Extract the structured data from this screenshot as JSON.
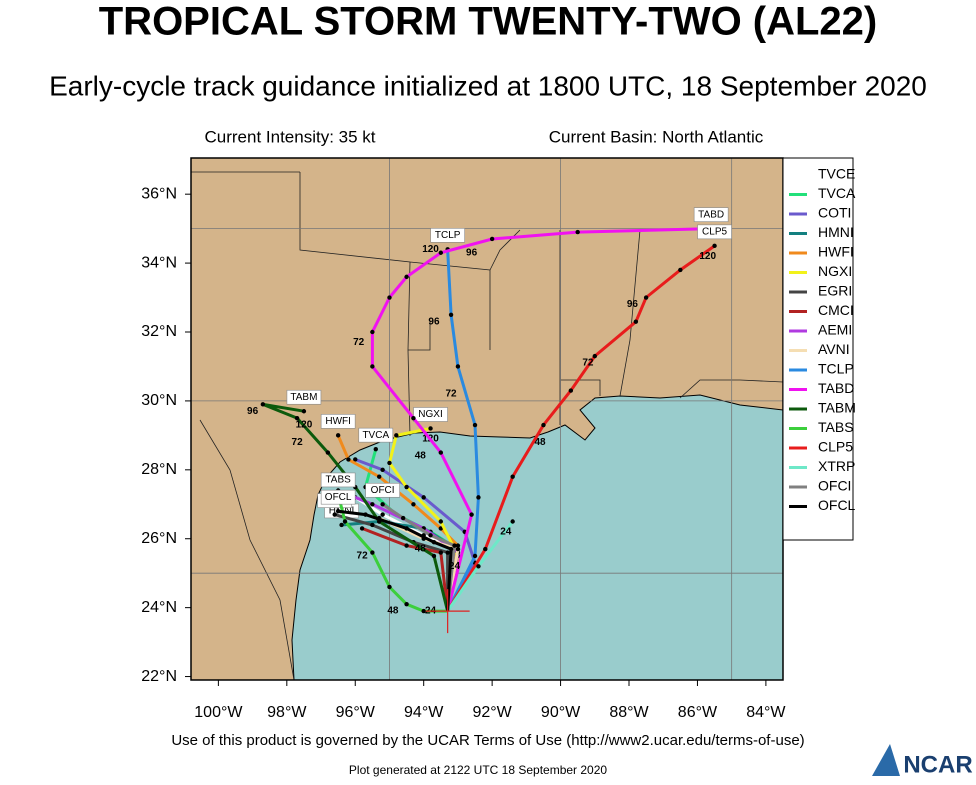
{
  "header": {
    "title": "TROPICAL STORM TWENTY-TWO (AL22)",
    "subtitle": "Early-cycle track guidance initialized at 1800 UTC, 18 September 2020",
    "intensity": "Current Intensity: 35 kt",
    "basin": "Current Basin: North Atlantic"
  },
  "footer": {
    "terms": "Use of this product is governed by the UCAR Terms of Use (http://www2.ucar.edu/terms-of-use)",
    "generated": "Plot generated at 2122 UTC   18 September 2020",
    "logo": "NCAR"
  },
  "map": {
    "lon_range": [
      -100.8,
      -83.5
    ],
    "lat_range": [
      21.9,
      37.05
    ],
    "lon_ticks": [
      {
        "value": -100,
        "label": "100°W"
      },
      {
        "value": -98,
        "label": "98°W"
      },
      {
        "value": -96,
        "label": "96°W"
      },
      {
        "value": -94,
        "label": "94°W"
      },
      {
        "value": -92,
        "label": "92°W"
      },
      {
        "value": -90,
        "label": "90°W"
      },
      {
        "value": -88,
        "label": "88°W"
      },
      {
        "value": -86,
        "label": "86°W"
      },
      {
        "value": -84,
        "label": "84°W"
      }
    ],
    "lat_ticks": [
      {
        "value": 22,
        "label": "22°N"
      },
      {
        "value": 24,
        "label": "24°N"
      },
      {
        "value": 26,
        "label": "26°N"
      },
      {
        "value": 28,
        "label": "28°N"
      },
      {
        "value": 30,
        "label": "30°N"
      },
      {
        "value": 32,
        "label": "32°N"
      },
      {
        "value": 34,
        "label": "34°N"
      },
      {
        "value": 36,
        "label": "36°N"
      }
    ],
    "grid_lons": [
      -95,
      -90,
      -85
    ],
    "grid_lats": [
      25,
      30,
      35
    ],
    "current_position": {
      "lon": -93.3,
      "lat": 23.9
    },
    "series": [
      {
        "name": "TVCE",
        "color": "#ffffff",
        "lon": [
          -93.3,
          -93.1,
          -94.0,
          -95.2,
          -96.0
        ],
        "lat": [
          23.9,
          25.7,
          26.1,
          26.7,
          27.2
        ]
      },
      {
        "name": "TVCA",
        "color": "#22e07a",
        "label_box": true,
        "lon": [
          -93.3,
          -93.0,
          -93.8,
          -94.8,
          -95.7,
          -95.4
        ],
        "lat": [
          23.9,
          25.7,
          26.2,
          26.7,
          27.5,
          28.6
        ]
      },
      {
        "name": "COTI",
        "color": "#6a5acd",
        "lon": [
          -93.3,
          -92.5,
          -92.8,
          -94.0,
          -95.2,
          -96.0
        ],
        "lat": [
          23.9,
          25.3,
          26.2,
          27.2,
          28.0,
          28.3
        ]
      },
      {
        "name": "HMNI",
        "color": "#138080",
        "label_box": true,
        "lon": [
          -93.3,
          -93.2,
          -94.0,
          -95.3,
          -96.4
        ],
        "lat": [
          23.9,
          25.8,
          26.3,
          26.5,
          26.4
        ]
      },
      {
        "name": "HWFI",
        "color": "#f08a1c",
        "label_box": true,
        "lon": [
          -93.3,
          -93.0,
          -93.5,
          -94.3,
          -95.3,
          -96.2,
          -96.5
        ],
        "lat": [
          23.9,
          25.8,
          26.3,
          27.0,
          27.8,
          28.3,
          29.0
        ]
      },
      {
        "name": "NGXI",
        "color": "#f2f21a",
        "label_box": true,
        "lon": [
          -93.3,
          -93.0,
          -93.5,
          -94.5,
          -95.0,
          -94.8,
          -93.8
        ],
        "lat": [
          23.9,
          25.5,
          26.5,
          27.5,
          28.2,
          29.0,
          29.2
        ],
        "tau_labels": [
          {
            "text": 48,
            "lon": -94.1,
            "lat": 28.4
          },
          {
            "text": 120,
            "lon": -93.8,
            "lat": 28.9
          }
        ]
      },
      {
        "name": "EGRI",
        "color": "#444444",
        "label_box": true,
        "lon": [
          -93.3,
          -93.3,
          -94.3,
          -95.5,
          -96.6
        ],
        "lat": [
          23.9,
          25.6,
          25.9,
          26.4,
          26.7
        ]
      },
      {
        "name": "CMCI",
        "color": "#b22222",
        "lon": [
          -93.3,
          -93.5,
          -94.5,
          -95.8
        ],
        "lat": [
          23.9,
          25.6,
          25.8,
          26.3
        ]
      },
      {
        "name": "AEMI",
        "color": "#b03ae0",
        "lon": [
          -93.3,
          -93.0,
          -94.0,
          -95.5,
          -96.5
        ],
        "lat": [
          23.9,
          25.6,
          26.3,
          27.0,
          27.4
        ]
      },
      {
        "name": "AVNI",
        "color": "#f5deb3",
        "lon": [
          -93.3,
          -93.0,
          -94.0,
          -95.3
        ],
        "lat": [
          23.9,
          25.7,
          26.0,
          26.6
        ]
      },
      {
        "name": "TCLP",
        "color": "#2a8ae0",
        "label_box": true,
        "lon": [
          -93.3,
          -92.5,
          -92.4,
          -92.5,
          -93.0,
          -93.2,
          -93.3
        ],
        "lat": [
          23.9,
          25.5,
          27.2,
          29.3,
          31.0,
          32.5,
          34.4
        ],
        "tau_labels": [
          {
            "text": 72,
            "lon": -93.2,
            "lat": 30.2
          },
          {
            "text": 96,
            "lon": -93.7,
            "lat": 32.3
          },
          {
            "text": 120,
            "lon": -93.8,
            "lat": 34.4
          }
        ]
      },
      {
        "name": "TABD",
        "color": "#f012f0",
        "label_box": true,
        "lon": [
          -93.3,
          -92.6,
          -93.5,
          -94.3,
          -95.5,
          -95.5,
          -95.0,
          -94.5,
          -93.5,
          -92.0,
          -89.5,
          -85.6
        ],
        "lat": [
          23.9,
          26.7,
          28.5,
          29.5,
          31.0,
          32.0,
          33.0,
          33.6,
          34.3,
          34.7,
          34.9,
          35.0
        ],
        "tau_labels": [
          {
            "text": 72,
            "lon": -95.9,
            "lat": 31.7
          },
          {
            "text": 96,
            "lon": -92.6,
            "lat": 34.3
          },
          {
            "text": 120,
            "lon": -85.6,
            "lat": 34.8
          }
        ]
      },
      {
        "name": "TABM",
        "color": "#0c5a0c",
        "label_box": true,
        "lon": [
          -93.3,
          -93.7,
          -95.3,
          -96.0,
          -96.8,
          -97.7,
          -98.7,
          -97.5
        ],
        "lat": [
          23.9,
          25.5,
          26.5,
          27.5,
          28.5,
          29.5,
          29.9,
          29.7
        ],
        "tau_labels": [
          {
            "text": 72,
            "lon": -97.7,
            "lat": 28.8
          },
          {
            "text": 96,
            "lon": -99.0,
            "lat": 29.7
          },
          {
            "text": 120,
            "lon": -97.5,
            "lat": 29.3
          }
        ]
      },
      {
        "name": "TABS",
        "color": "#3ccf3c",
        "label_box": true,
        "lon": [
          -93.3,
          -94.0,
          -94.5,
          -95.0,
          -95.5,
          -96.3,
          -96.5
        ],
        "lat": [
          23.9,
          23.9,
          24.1,
          24.6,
          25.6,
          26.5,
          27.3
        ],
        "tau_labels": [
          {
            "text": 24,
            "lon": -93.8,
            "lat": 23.9
          },
          {
            "text": 48,
            "lon": -94.9,
            "lat": 23.9
          },
          {
            "text": 72,
            "lon": -95.8,
            "lat": 25.5
          }
        ]
      },
      {
        "name": "CLP5",
        "color": "#e81c1c",
        "label_box": true,
        "lon": [
          -93.3,
          -92.2,
          -91.4,
          -90.5,
          -89.7,
          -89.0,
          -87.8,
          -87.5,
          -86.5,
          -85.5
        ],
        "lat": [
          23.9,
          25.7,
          27.8,
          29.3,
          30.3,
          31.3,
          32.3,
          33.0,
          33.8,
          34.5
        ],
        "tau_labels": [
          {
            "text": 48,
            "lon": -90.6,
            "lat": 28.8
          },
          {
            "text": 72,
            "lon": -89.2,
            "lat": 31.1
          },
          {
            "text": 96,
            "lon": -87.9,
            "lat": 32.8
          },
          {
            "text": 120,
            "lon": -85.7,
            "lat": 34.2
          }
        ]
      },
      {
        "name": "XTRP",
        "color": "#6ee8c8",
        "lon": [
          -93.3,
          -92.4,
          -91.4
        ],
        "lat": [
          23.9,
          25.2,
          26.5
        ],
        "tau_labels": [
          {
            "text": 24,
            "lon": -91.6,
            "lat": 26.2
          }
        ]
      },
      {
        "name": "OFCI",
        "color": "#808080",
        "label_box": true,
        "lon": [
          -93.3,
          -93.1,
          -93.8,
          -94.6,
          -95.2
        ],
        "lat": [
          23.9,
          25.8,
          26.1,
          26.6,
          27.0
        ]
      },
      {
        "name": "OFCL",
        "color": "#000000",
        "label_box": true,
        "lon": [
          -93.3,
          -93.2,
          -93.7,
          -94.5,
          -95.7,
          -96.5
        ],
        "lat": [
          23.9,
          25.7,
          25.9,
          26.3,
          26.7,
          26.8
        ],
        "tau_labels": [
          {
            "text": 24,
            "lon": -93.1,
            "lat": 25.2
          },
          {
            "text": 48,
            "lon": -94.1,
            "lat": 25.7
          }
        ]
      }
    ]
  }
}
